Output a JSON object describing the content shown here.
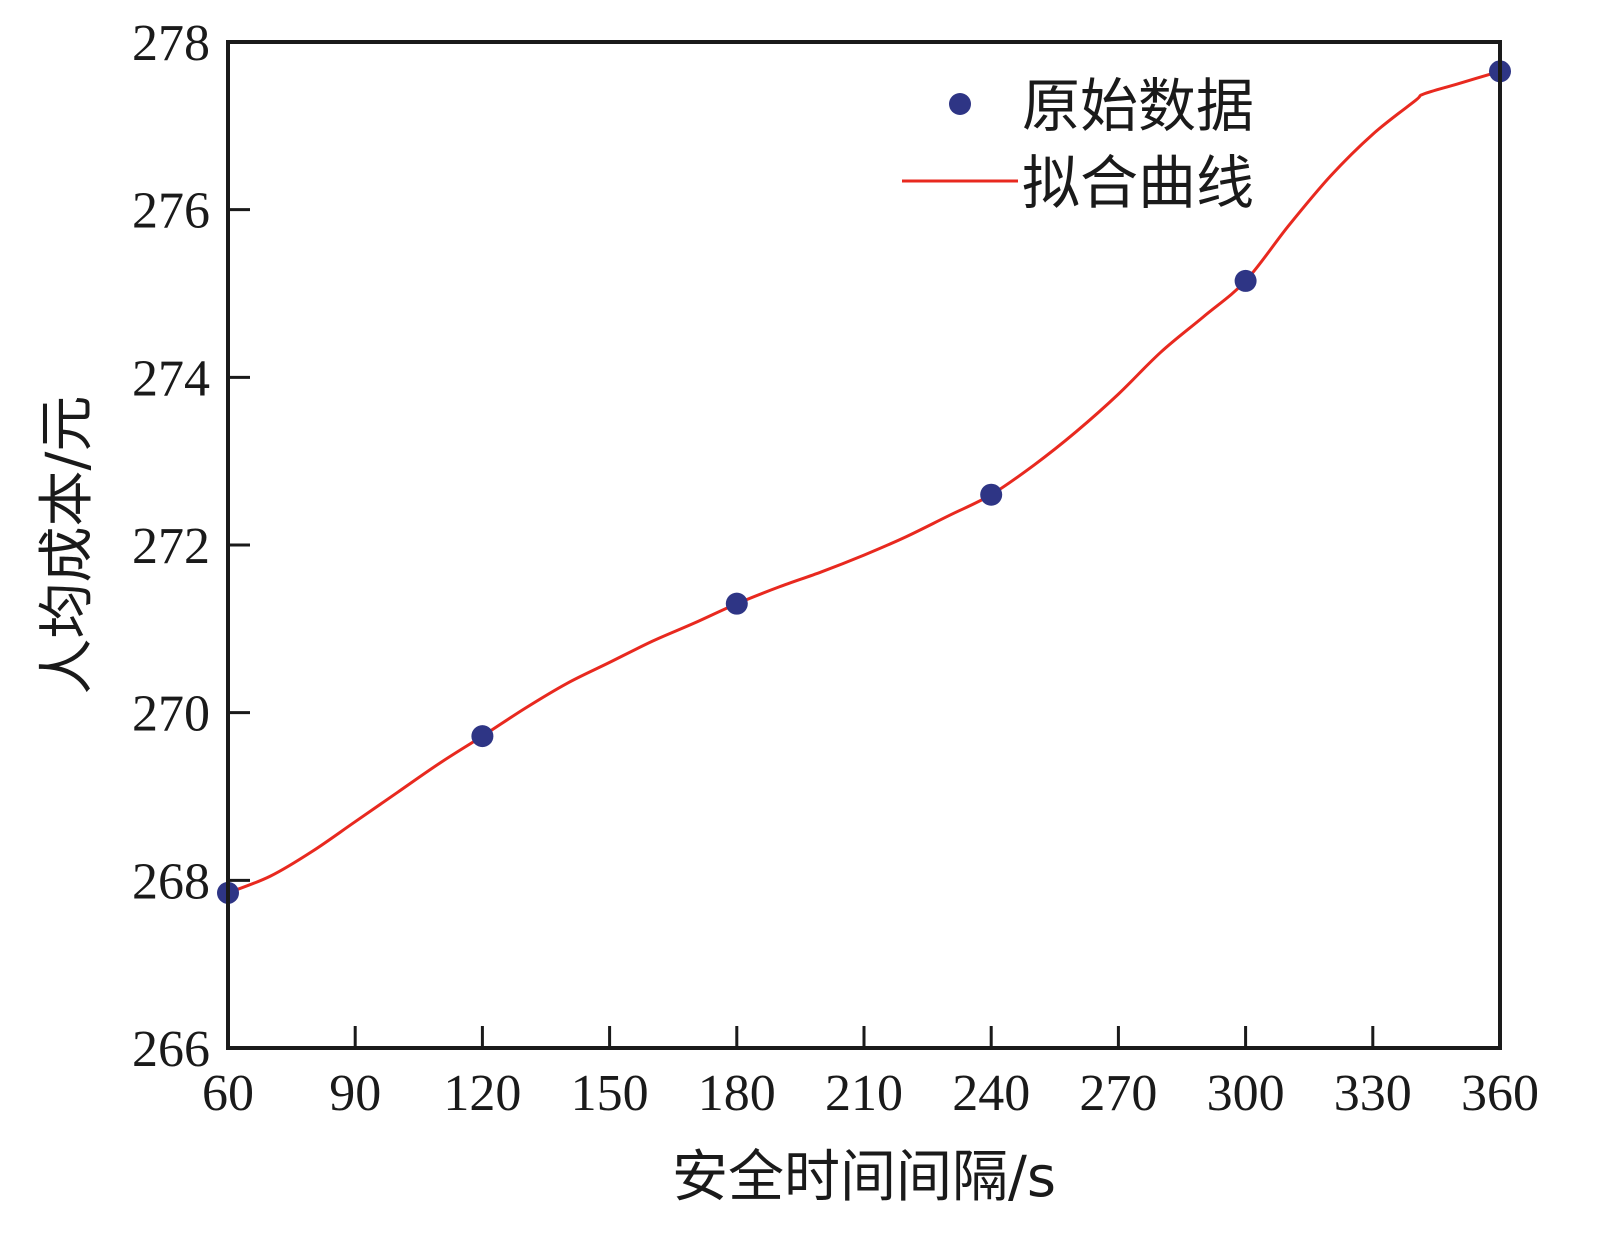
{
  "chart_data": {
    "type": "line",
    "title": "",
    "xlabel": "安全时间间隔/s",
    "ylabel": "人均成本/元",
    "xlim": [
      60,
      360
    ],
    "ylim": [
      266,
      278
    ],
    "xticks": [
      60,
      90,
      120,
      150,
      180,
      210,
      240,
      270,
      300,
      330,
      360
    ],
    "yticks": [
      266,
      268,
      270,
      272,
      274,
      276,
      278
    ],
    "grid": false,
    "legend_position": "top-right",
    "series": [
      {
        "name": "原始数据",
        "kind": "scatter",
        "color": "#2e3585",
        "x": [
          60,
          120,
          180,
          240,
          300,
          360
        ],
        "y": [
          267.85,
          269.72,
          271.3,
          272.6,
          275.15,
          277.65
        ]
      },
      {
        "name": "拟合曲线",
        "kind": "line",
        "color": "#e8291f",
        "x": [
          60,
          70,
          80,
          90,
          100,
          110,
          120,
          130,
          140,
          150,
          160,
          170,
          180,
          190,
          200,
          210,
          220,
          230,
          240,
          250,
          260,
          270,
          280,
          290,
          300,
          310,
          320,
          330,
          340,
          342,
          350,
          360
        ],
        "y": [
          267.85,
          268.05,
          268.35,
          268.7,
          269.05,
          269.4,
          269.72,
          270.05,
          270.35,
          270.6,
          270.85,
          271.07,
          271.3,
          271.5,
          271.68,
          271.88,
          272.1,
          272.35,
          272.6,
          272.95,
          273.35,
          273.8,
          274.3,
          274.72,
          275.15,
          275.8,
          276.4,
          276.9,
          277.3,
          277.38,
          277.5,
          277.65
        ]
      }
    ]
  }
}
